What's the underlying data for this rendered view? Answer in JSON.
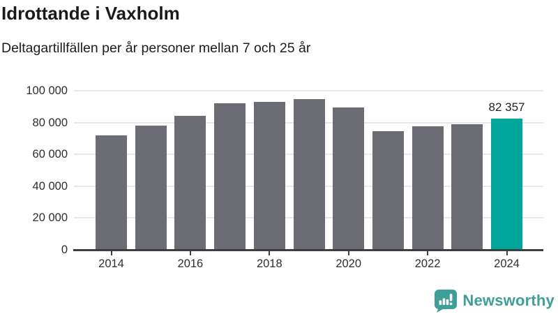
{
  "header": {
    "title": "Idrottande i Vaxholm",
    "subtitle": "Deltagartillfällen per år personer mellan 7 och 25 år"
  },
  "chart_data": {
    "type": "bar",
    "categories": [
      "2014",
      "2015",
      "2016",
      "2017",
      "2018",
      "2019",
      "2020",
      "2021",
      "2022",
      "2023",
      "2024"
    ],
    "values": [
      72000,
      78200,
      84300,
      92000,
      93200,
      94900,
      89600,
      74400,
      77800,
      78800,
      82357
    ],
    "title": "Idrottande i Vaxholm",
    "subtitle": "Deltagartillfällen per år personer mellan 7 och 25 år",
    "xlabel": "",
    "ylabel": "",
    "ylim": [
      0,
      100000
    ],
    "grid": "horizontal",
    "legend": "none",
    "ytick_values": [
      0,
      20000,
      40000,
      60000,
      80000,
      100000
    ],
    "ytick_labels": [
      "0",
      "20 000",
      "40 000",
      "60 000",
      "80 000",
      "100 000"
    ],
    "xtick_years": [
      "2014",
      "2016",
      "2018",
      "2020",
      "2022",
      "2024"
    ],
    "highlight_index": 10,
    "highlight_label": "82 357",
    "colors": {
      "bar": "#6c6c74",
      "highlight": "#00a69a",
      "grid": "#e8e8e8",
      "axis": "#3e3e42"
    }
  },
  "footer": {
    "brand": "Newsworthy",
    "brand_color": "#3f9e97",
    "logo_icon": "bar-chart-speech-bubble"
  }
}
